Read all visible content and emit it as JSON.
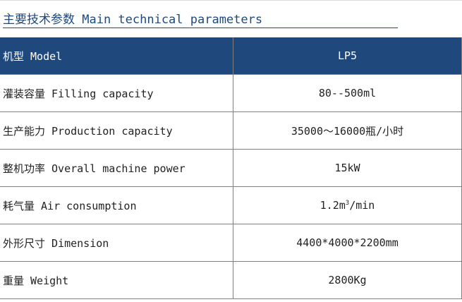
{
  "title": "主要技术参数 Main technical parameters",
  "colors": {
    "header_bg": "#1f497d",
    "title": "#1f497d"
  },
  "rows": [
    {
      "label": "机型 Model",
      "value": "LP5"
    },
    {
      "label": "灌装容量 Filling capacity",
      "value": "80--500ml"
    },
    {
      "label": "生产能力 Production capacity",
      "value": "35000～16000瓶/小时"
    },
    {
      "label": "整机功率 Overall machine power",
      "value": "15kW"
    },
    {
      "label": "耗气量 Air consumption",
      "value": "1.2m",
      "value_sup": "3",
      "value_suffix": "/min"
    },
    {
      "label": "外形尺寸 Dimension",
      "value": "4400*4000*2200mm"
    },
    {
      "label": "重量 Weight",
      "value": "2800Kg"
    }
  ]
}
